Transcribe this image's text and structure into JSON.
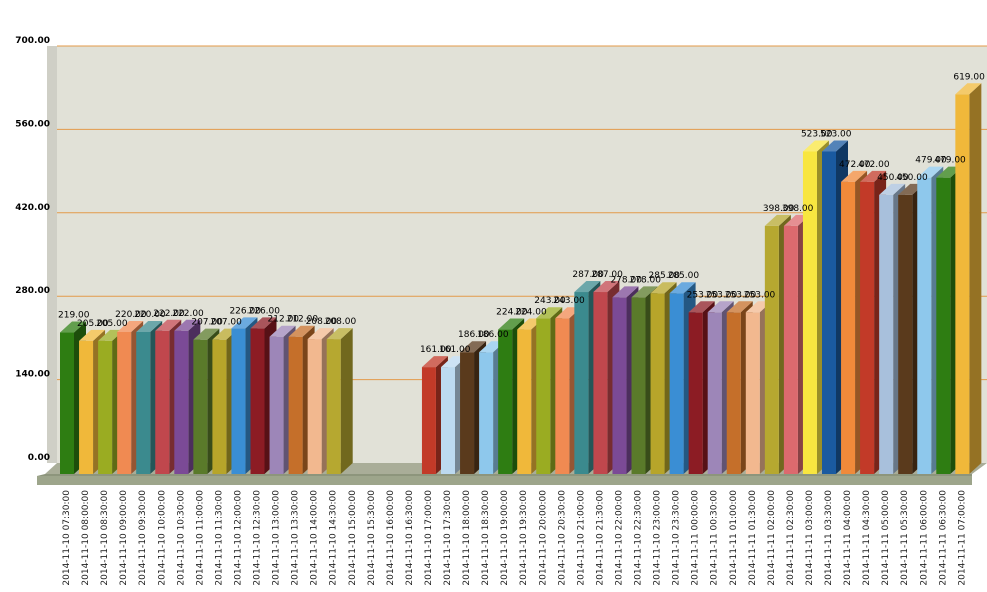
{
  "chart_data": {
    "type": "bar",
    "title": "",
    "xlabel": "",
    "ylabel": "",
    "ylim": [
      0,
      700
    ],
    "yticks": [
      0,
      140,
      280,
      420,
      560,
      700
    ],
    "ytick_labels": [
      "0.00",
      "140.00",
      "280.00",
      "420.00",
      "560.00",
      "700.00"
    ],
    "grid": true,
    "three_d": true,
    "categories": [
      "2014-11-10 07:30:00",
      "2014-11-10 08:00:00",
      "2014-11-10 08:30:00",
      "2014-11-10 09:00:00",
      "2014-11-10 09:30:00",
      "2014-11-10 10:00:00",
      "2014-11-10 10:30:00",
      "2014-11-10 11:00:00",
      "2014-11-10 11:30:00",
      "2014-11-10 12:00:00",
      "2014-11-10 12:30:00",
      "2014-11-10 13:00:00",
      "2014-11-10 13:30:00",
      "2014-11-10 14:00:00",
      "2014-11-10 14:30:00",
      "2014-11-10 15:00:00",
      "2014-11-10 15:30:00",
      "2014-11-10 16:00:00",
      "2014-11-10 16:30:00",
      "2014-11-10 17:00:00",
      "2014-11-10 17:30:00",
      "2014-11-10 18:00:00",
      "2014-11-10 18:30:00",
      "2014-11-10 19:00:00",
      "2014-11-10 19:30:00",
      "2014-11-10 20:00:00",
      "2014-11-10 20:30:00",
      "2014-11-10 21:00:00",
      "2014-11-10 21:30:00",
      "2014-11-10 22:00:00",
      "2014-11-10 22:30:00",
      "2014-11-10 23:00:00",
      "2014-11-10 23:30:00",
      "2014-11-11 00:00:00",
      "2014-11-11 00:30:00",
      "2014-11-11 01:00:00",
      "2014-11-11 01:30:00",
      "2014-11-11 02:00:00",
      "2014-11-11 02:30:00",
      "2014-11-11 03:00:00",
      "2014-11-11 03:30:00",
      "2014-11-11 04:00:00",
      "2014-11-11 04:30:00",
      "2014-11-11 05:00:00",
      "2014-11-11 05:30:00",
      "2014-11-11 06:00:00",
      "2014-11-11 06:30:00",
      "2014-11-11 07:00:00"
    ],
    "values": [
      219,
      205,
      205,
      220,
      220,
      222,
      222,
      207,
      207,
      226,
      226,
      212,
      212,
      208,
      208,
      null,
      null,
      null,
      null,
      161,
      161,
      186,
      186,
      224,
      224,
      243,
      243,
      287,
      287,
      278,
      278,
      285,
      285,
      253,
      253,
      253,
      253,
      398,
      398,
      523,
      523,
      472,
      472,
      450,
      450,
      479,
      479,
      619
    ],
    "value_labels": [
      "219.00",
      "205.00",
      "205.00",
      "220.00",
      "220.00",
      "222.00",
      "222.00",
      "207.00",
      "207.00",
      "226.00",
      "226.00",
      "212.00",
      "212.00",
      "208.00",
      "208.00",
      "",
      "",
      "",
      "",
      "161.00",
      "161.00",
      "186.00",
      "186.00",
      "224.00",
      "224.00",
      "243.00",
      "243.00",
      "287.00",
      "287.00",
      "278.00",
      "278.00",
      "285.00",
      "285.00",
      "253.00",
      "253.00",
      "253.00",
      "253.00",
      "398.00",
      "398.00",
      "523.00",
      "523.00",
      "472.00",
      "472.00",
      "450.00",
      "450.00",
      "479.00",
      "479.00",
      "619.00"
    ],
    "bar_colors": [
      "#2e7d12",
      "#f0b83a",
      "#9aac22",
      "#f08a52",
      "#3b8a8e",
      "#c0474d",
      "#7b4a96",
      "#5a7a2a",
      "#b7a52a",
      "#3a8ed4",
      "#8c1c24",
      "#9d86b8",
      "#c56f2a",
      "#f2b88f",
      "#b6a830",
      "#000000",
      "#000000",
      "#000000",
      "#000000",
      "#c23a28",
      "#bcdaf0",
      "#5a3a1c",
      "#8ec8ec",
      "#2e7d12",
      "#f0b83a",
      "#9aac22",
      "#f08a52",
      "#3b8a8e",
      "#c0474d",
      "#7b4a96",
      "#5a7a2a",
      "#b7a52a",
      "#3a8ed4",
      "#8c1c24",
      "#9d86b8",
      "#c56f2a",
      "#f2b88f",
      "#b6a830",
      "#dc6a6e",
      "#f8e640",
      "#1a5aa0",
      "#f08a3a",
      "#c23a28",
      "#a8c0dc",
      "#5a3a1c",
      "#8ec8ec",
      "#2e7d12",
      "#f0b83a"
    ]
  }
}
